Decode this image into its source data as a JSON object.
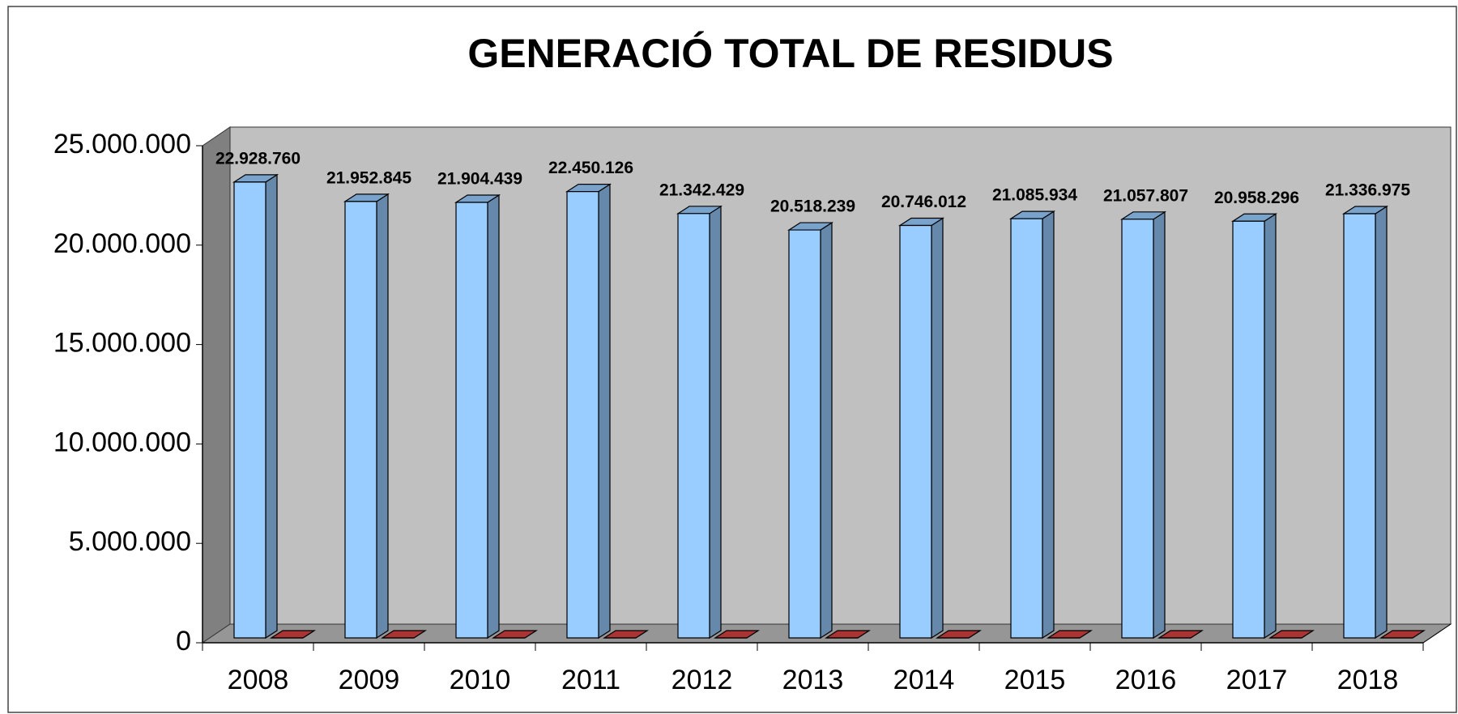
{
  "chart_data": {
    "type": "bar3d",
    "title": "GENERACIÓ TOTAL DE RESIDUS",
    "categories": [
      "2008",
      "2009",
      "2010",
      "2011",
      "2012",
      "2013",
      "2014",
      "2015",
      "2016",
      "2017",
      "2018"
    ],
    "series": [
      {
        "color": "#99ccff",
        "values": [
          22928760,
          21952845,
          21904439,
          22450126,
          21342429,
          20518239,
          20746012,
          21085934,
          21057807,
          20958296,
          21336975
        ],
        "value_labels": [
          "22.928.760",
          "21.952.845",
          "21.904.439",
          "22.450.126",
          "21.342.429",
          "20.518.239",
          "20.746.012",
          "21.085.934",
          "21.057.807",
          "20.958.296",
          "21.336.975"
        ]
      },
      {
        "color": "#993333",
        "values": [
          0,
          0,
          0,
          0,
          0,
          0,
          0,
          0,
          0,
          0,
          0
        ]
      }
    ],
    "ylim": [
      0,
      25000000
    ],
    "yticks": [
      0,
      {
        "value": 5000000,
        "label": "5.000.000"
      },
      {
        "value": 10000000,
        "label": "10.000.000"
      },
      {
        "value": 15000000,
        "label": "15.000.000"
      },
      {
        "value": 20000000,
        "label": "20.000.000"
      },
      {
        "value": 25000000,
        "label": "25.000.000"
      }
    ]
  }
}
